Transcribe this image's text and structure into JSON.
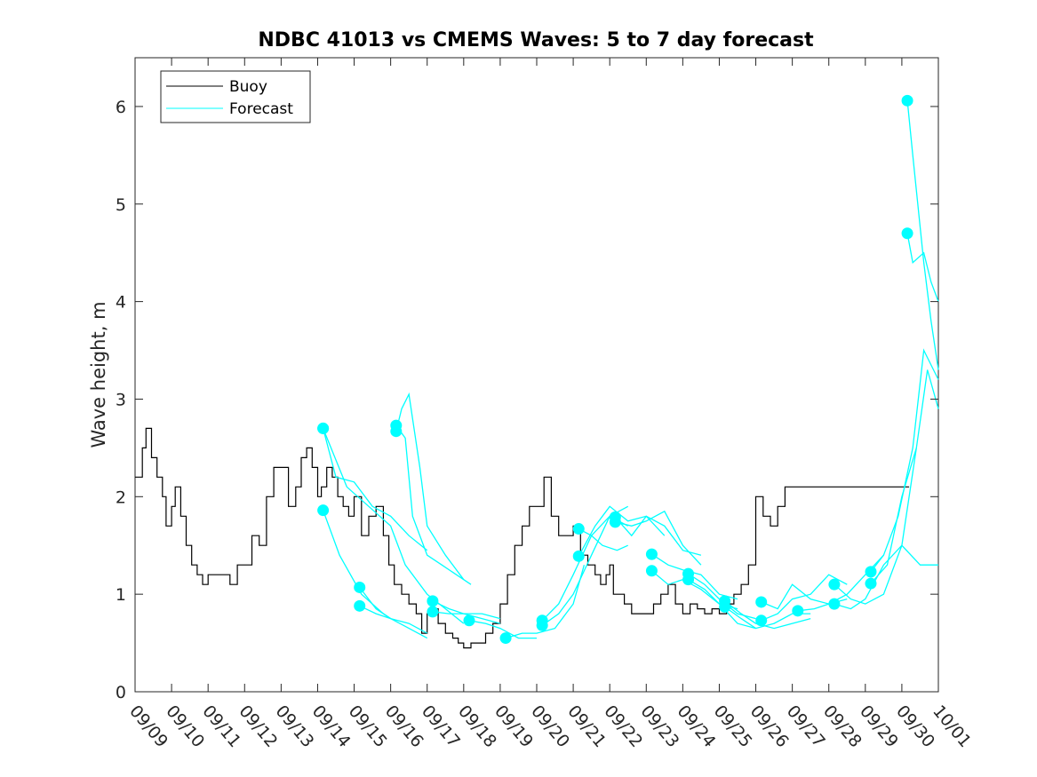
{
  "chart_data": {
    "type": "line",
    "title": "NDBC 41013 vs CMEMS Waves: 5 to 7 day forecast",
    "xlabel": "",
    "ylabel": "Wave height, m",
    "x_unit": "days since 09/09",
    "xlim": [
      0,
      22
    ],
    "ylim": [
      0,
      6.5
    ],
    "yticks": [
      0,
      1,
      2,
      3,
      4,
      5,
      6
    ],
    "xtick_labels": [
      "09/09",
      "09/10",
      "09/11",
      "09/12",
      "09/13",
      "09/14",
      "09/15",
      "09/16",
      "09/17",
      "09/18",
      "09/19",
      "09/20",
      "09/21",
      "09/22",
      "09/23",
      "09/24",
      "09/25",
      "09/26",
      "09/27",
      "09/28",
      "09/29",
      "09/30",
      "10/01"
    ],
    "grid": false,
    "legend": {
      "position": "top-left",
      "entries": [
        "Buoy",
        "Forecast"
      ]
    },
    "colors": {
      "buoy": "#000000",
      "forecast": "#00ffff",
      "marker": "#00ffff",
      "axis": "#262626"
    },
    "buoy": {
      "name": "Buoy",
      "x": [
        0,
        0.2,
        0.3,
        0.45,
        0.6,
        0.75,
        0.85,
        1.0,
        1.1,
        1.25,
        1.4,
        1.55,
        1.7,
        1.85,
        2.0,
        2.2,
        2.4,
        2.6,
        2.8,
        3.0,
        3.2,
        3.4,
        3.6,
        3.8,
        4.0,
        4.2,
        4.4,
        4.55,
        4.7,
        4.85,
        5.0,
        5.1,
        5.25,
        5.4,
        5.55,
        5.7,
        5.85,
        6.0,
        6.2,
        6.4,
        6.6,
        6.8,
        6.95,
        7.1,
        7.3,
        7.5,
        7.7,
        7.85,
        8.0,
        8.15,
        8.3,
        8.5,
        8.7,
        8.85,
        9.0,
        9.2,
        9.4,
        9.6,
        9.8,
        10.0,
        10.2,
        10.4,
        10.6,
        10.8,
        11.0,
        11.2,
        11.4,
        11.6,
        11.8,
        12.0,
        12.2,
        12.4,
        12.6,
        12.75,
        12.9,
        13.0,
        13.1,
        13.25,
        13.4,
        13.6,
        13.8,
        14.0,
        14.2,
        14.4,
        14.6,
        14.8,
        15.0,
        15.2,
        15.4,
        15.6,
        15.8,
        16.0,
        16.2,
        16.4,
        16.6,
        16.8,
        17.0,
        17.2,
        17.4,
        17.6,
        17.8,
        18.0,
        18.2,
        18.4,
        18.6,
        18.8,
        19.0,
        19.2,
        19.4,
        19.6,
        19.8,
        20.0,
        20.15,
        20.3,
        20.45,
        20.6,
        20.75,
        20.9,
        21.0,
        21.1,
        21.2
      ],
      "values": [
        2.2,
        2.5,
        2.7,
        2.4,
        2.2,
        2.0,
        1.7,
        1.9,
        2.1,
        1.8,
        1.5,
        1.3,
        1.2,
        1.1,
        1.2,
        1.2,
        1.2,
        1.1,
        1.3,
        1.3,
        1.6,
        1.5,
        2.0,
        2.3,
        2.3,
        1.9,
        2.1,
        2.4,
        2.5,
        2.3,
        2.0,
        2.1,
        2.3,
        2.2,
        2.0,
        1.9,
        1.8,
        2.0,
        1.6,
        1.8,
        1.9,
        1.6,
        1.3,
        1.1,
        1.0,
        0.9,
        0.8,
        0.6,
        0.8,
        0.85,
        0.7,
        0.6,
        0.55,
        0.5,
        0.45,
        0.5,
        0.5,
        0.6,
        0.7,
        0.9,
        1.2,
        1.5,
        1.7,
        1.9,
        1.9,
        2.2,
        1.8,
        1.6,
        1.6,
        1.7,
        1.4,
        1.3,
        1.2,
        1.1,
        1.2,
        1.3,
        1.0,
        1.0,
        0.9,
        0.8,
        0.8,
        0.8,
        0.9,
        1.0,
        1.1,
        0.9,
        0.8,
        0.9,
        0.85,
        0.8,
        0.85,
        0.8,
        0.9,
        1.0,
        1.1,
        1.3,
        2.0,
        1.8,
        1.7,
        1.9,
        2.1,
        2.1,
        2.1,
        2.1,
        2.1,
        2.1,
        2.1,
        2.1,
        2.1,
        2.1,
        2.1,
        2.1,
        2.1,
        2.1,
        2.1,
        2.1,
        2.1,
        2.1,
        2.1,
        2.1,
        2.1
      ]
    },
    "forecast_series": [
      {
        "name": "Forecast",
        "x": [
          5.15,
          5.6,
          6.2,
          6.8,
          7.0
        ],
        "values": [
          1.86,
          1.4,
          1.0,
          0.8,
          0.75
        ]
      },
      {
        "name": "Forecast",
        "x": [
          5.15,
          5.5,
          6.0,
          6.5,
          7.0,
          7.5,
          8.0
        ],
        "values": [
          2.7,
          2.2,
          2.15,
          1.9,
          1.8,
          1.6,
          1.45
        ]
      },
      {
        "name": "Forecast",
        "x": [
          5.15,
          5.8,
          6.4,
          7.0,
          7.4,
          8.0,
          8.5,
          9.0
        ],
        "values": [
          2.7,
          2.1,
          1.9,
          1.7,
          1.3,
          1.0,
          0.85,
          0.7
        ]
      },
      {
        "name": "Forecast",
        "x": [
          6.15,
          6.6,
          7.0,
          7.5,
          8.0
        ],
        "values": [
          1.07,
          0.85,
          0.75,
          0.65,
          0.55
        ]
      },
      {
        "name": "Forecast",
        "x": [
          6.15,
          6.6,
          7.0,
          7.5,
          8.0
        ],
        "values": [
          0.88,
          0.8,
          0.75,
          0.7,
          0.6
        ]
      },
      {
        "name": "Forecast",
        "x": [
          7.15,
          7.4,
          7.6,
          8.0,
          8.4,
          8.8,
          9.2
        ],
        "values": [
          2.73,
          2.6,
          1.8,
          1.4,
          1.3,
          1.2,
          1.1
        ]
      },
      {
        "name": "Forecast",
        "x": [
          7.15,
          7.3,
          7.5,
          7.8,
          8.0,
          8.5,
          9.0
        ],
        "values": [
          2.67,
          2.9,
          3.05,
          2.3,
          1.7,
          1.4,
          1.15
        ]
      },
      {
        "name": "Forecast",
        "x": [
          8.15,
          8.6,
          9.0,
          9.5,
          10.0
        ],
        "values": [
          0.93,
          0.85,
          0.8,
          0.8,
          0.75
        ]
      },
      {
        "name": "Forecast",
        "x": [
          8.15,
          8.6,
          9.0,
          9.5,
          10.0
        ],
        "values": [
          0.82,
          0.8,
          0.8,
          0.75,
          0.7
        ]
      },
      {
        "name": "Forecast",
        "x": [
          9.15,
          9.6,
          10.0,
          10.5,
          11.0
        ],
        "values": [
          0.73,
          0.7,
          0.65,
          0.55,
          0.55
        ]
      },
      {
        "name": "Forecast",
        "x": [
          10.15,
          10.6,
          11.0,
          11.5,
          12.0,
          12.3
        ],
        "values": [
          0.55,
          0.6,
          0.6,
          0.65,
          0.9,
          1.3
        ]
      },
      {
        "name": "Forecast",
        "x": [
          11.15,
          11.6,
          12.0,
          12.5,
          13.0,
          13.5
        ],
        "values": [
          0.68,
          0.8,
          1.0,
          1.4,
          1.8,
          1.9
        ]
      },
      {
        "name": "Forecast",
        "x": [
          11.15,
          11.6,
          12.0,
          12.5,
          13.0,
          13.5
        ],
        "values": [
          0.73,
          0.9,
          1.2,
          1.6,
          1.8,
          1.7
        ]
      },
      {
        "name": "Forecast",
        "x": [
          12.15,
          12.5,
          12.8,
          13.2,
          13.5
        ],
        "values": [
          1.67,
          1.6,
          1.5,
          1.45,
          1.5
        ]
      },
      {
        "name": "Forecast",
        "x": [
          12.15,
          12.6,
          13.0,
          13.5,
          14.0,
          14.5
        ],
        "values": [
          1.39,
          1.7,
          1.9,
          1.75,
          1.8,
          1.6
        ]
      },
      {
        "name": "Forecast",
        "x": [
          13.15,
          13.6,
          14.0,
          14.5,
          15.0,
          15.5
        ],
        "values": [
          1.74,
          1.7,
          1.75,
          1.85,
          1.5,
          1.3
        ]
      },
      {
        "name": "Forecast",
        "x": [
          13.15,
          13.6,
          14.0,
          14.5,
          15.0,
          15.5
        ],
        "values": [
          1.79,
          1.6,
          1.8,
          1.7,
          1.45,
          1.4
        ]
      },
      {
        "name": "Forecast",
        "x": [
          14.15,
          14.6,
          15.0,
          15.5,
          16.0,
          16.5
        ],
        "values": [
          1.41,
          1.3,
          1.25,
          1.2,
          1.0,
          0.95
        ]
      },
      {
        "name": "Forecast",
        "x": [
          14.15,
          14.6,
          15.0,
          15.5,
          16.0,
          16.5
        ],
        "values": [
          1.24,
          1.1,
          1.15,
          1.05,
          0.9,
          0.85
        ]
      },
      {
        "name": "Forecast",
        "x": [
          15.15,
          15.6,
          16.0,
          16.5,
          17.0
        ],
        "values": [
          1.21,
          1.1,
          0.95,
          0.8,
          0.75
        ]
      },
      {
        "name": "Forecast",
        "x": [
          15.15,
          15.6,
          16.0,
          16.5,
          17.0
        ],
        "values": [
          1.15,
          1.05,
          0.9,
          0.7,
          0.65
        ]
      },
      {
        "name": "Forecast",
        "x": [
          16.15,
          16.6,
          17.0,
          17.5,
          18.0,
          18.5
        ],
        "values": [
          0.93,
          0.8,
          0.7,
          0.65,
          0.7,
          0.75
        ]
      },
      {
        "name": "Forecast",
        "x": [
          16.15,
          16.6,
          17.0,
          17.5,
          18.0,
          18.5
        ],
        "values": [
          0.87,
          0.75,
          0.65,
          0.7,
          0.8,
          0.8
        ]
      },
      {
        "name": "Forecast",
        "x": [
          17.15,
          17.6,
          18.0,
          18.5,
          19.0,
          19.5
        ],
        "values": [
          0.92,
          0.85,
          1.1,
          0.95,
          0.9,
          0.95
        ]
      },
      {
        "name": "Forecast",
        "x": [
          17.15,
          17.6,
          18.0,
          18.5,
          19.0,
          19.5
        ],
        "values": [
          0.73,
          0.8,
          0.95,
          1.0,
          1.2,
          1.1
        ]
      },
      {
        "name": "Forecast",
        "x": [
          18.15,
          18.6,
          19.0,
          19.5,
          20.0,
          20.5
        ],
        "values": [
          0.83,
          0.85,
          0.9,
          1.0,
          1.2,
          1.4
        ]
      },
      {
        "name": "Forecast",
        "x": [
          19.15,
          19.6,
          20.0,
          20.5,
          21.0,
          21.4
        ],
        "values": [
          1.1,
          0.95,
          0.9,
          1.0,
          1.5,
          2.5
        ]
      },
      {
        "name": "Forecast",
        "x": [
          19.15,
          19.6,
          20.0,
          20.5,
          21.0,
          21.5,
          22.0
        ],
        "values": [
          0.9,
          0.85,
          0.95,
          1.3,
          1.5,
          1.3,
          1.3
        ]
      },
      {
        "name": "Forecast",
        "x": [
          20.15,
          20.5,
          20.9,
          21.3,
          21.6,
          22.0
        ],
        "values": [
          1.23,
          1.4,
          1.8,
          2.5,
          3.5,
          3.2
        ]
      },
      {
        "name": "Forecast",
        "x": [
          20.15,
          20.6,
          21.0,
          21.4,
          21.7,
          22.0
        ],
        "values": [
          1.11,
          1.3,
          2.0,
          2.5,
          3.3,
          2.9
        ]
      },
      {
        "name": "Forecast",
        "x": [
          21.15,
          21.3,
          21.6,
          21.8,
          22.0
        ],
        "values": [
          6.06,
          5.5,
          4.4,
          3.8,
          3.3
        ]
      },
      {
        "name": "Forecast",
        "x": [
          21.15,
          21.3,
          21.6,
          21.8,
          22.0
        ],
        "values": [
          4.7,
          4.4,
          4.5,
          4.2,
          4.0
        ]
      }
    ]
  }
}
